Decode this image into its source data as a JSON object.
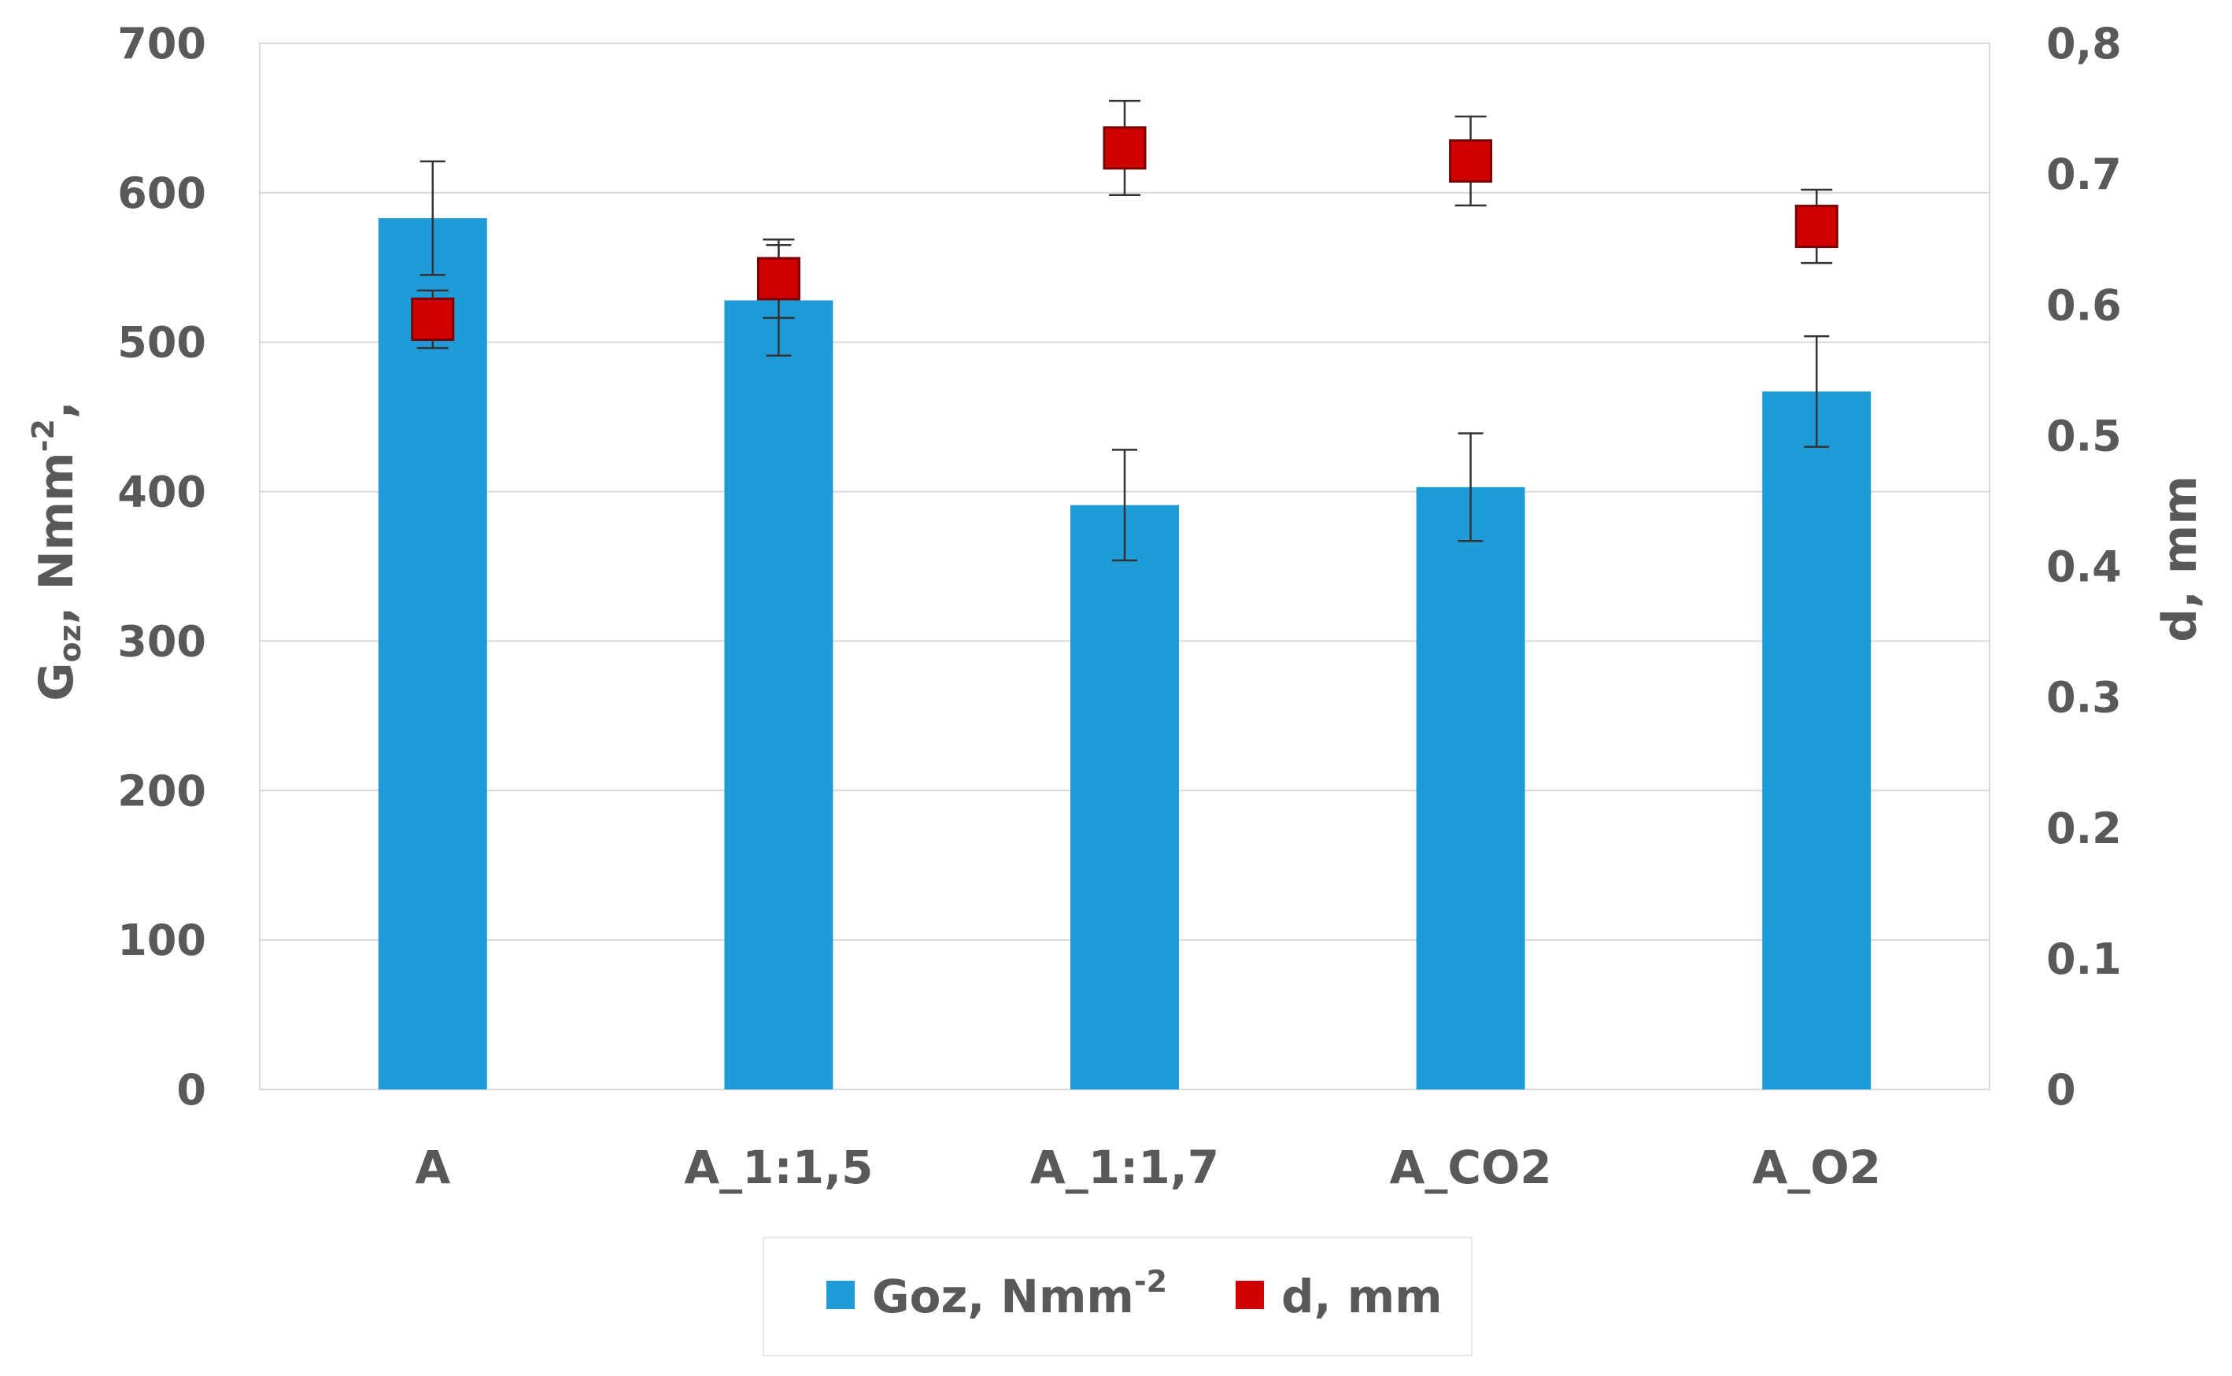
{
  "chart_data": {
    "type": "bar",
    "categories": [
      "A",
      "A_1:1,5",
      "A_1:1,7",
      "A_CO2",
      "A_O2"
    ],
    "series": [
      {
        "name": "Goz, Nmm-2",
        "kind": "bar",
        "axis": "left",
        "color": "#1f9bd7",
        "values": [
          583,
          528,
          391,
          403,
          467
        ],
        "errors": [
          38,
          37,
          37,
          36,
          37
        ]
      },
      {
        "name": "d, mm",
        "kind": "scatter",
        "axis": "right",
        "color": "#d10000",
        "values": [
          0.589,
          0.62,
          0.72,
          0.71,
          0.66
        ],
        "errors": [
          0.022,
          0.03,
          0.036,
          0.034,
          0.028
        ]
      }
    ],
    "y_left": {
      "label_main": "G",
      "label_sub": "oz",
      "label_rest": ", Nmm",
      "label_sup": "-2",
      "label_tail": ",",
      "ylim": [
        0,
        700
      ],
      "ticks": [
        0,
        100,
        200,
        300,
        400,
        500,
        600,
        700
      ],
      "tick_labels": [
        "0",
        "100",
        "200",
        "300",
        "400",
        "500",
        "600",
        "700"
      ]
    },
    "y_right": {
      "label": "d, mm",
      "ylim": [
        0,
        0.8
      ],
      "ticks": [
        0,
        0.1,
        0.2,
        0.3,
        0.4,
        0.5,
        0.6,
        0.7,
        0.8
      ],
      "tick_labels": [
        "0",
        "0.1",
        "0.2",
        "0.3",
        "0.4",
        "0.5",
        "0.6",
        "0.7",
        "0,8"
      ]
    },
    "grid": true,
    "legend": {
      "position": "bottom",
      "entries": [
        {
          "label": "Goz, Nmm",
          "sup": "-2"
        },
        {
          "label": "d, mm",
          "sup": ""
        }
      ]
    }
  }
}
